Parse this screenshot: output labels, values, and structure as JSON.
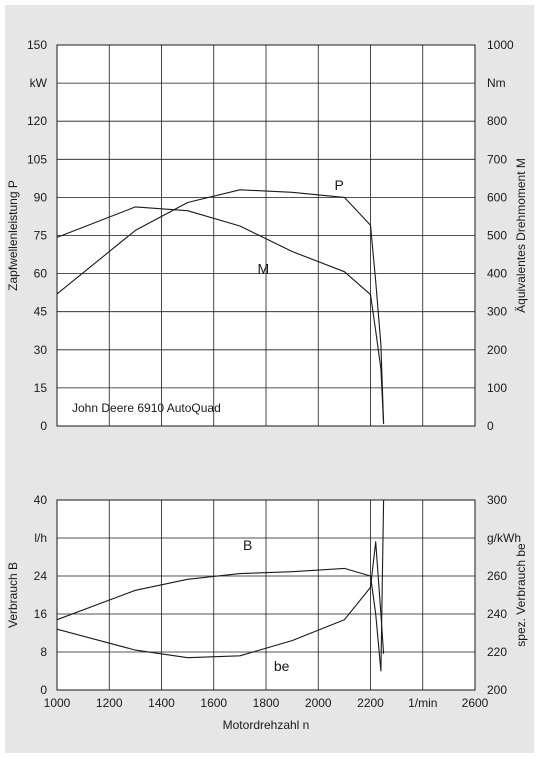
{
  "chart_data": [
    {
      "type": "line",
      "annotation": "John Deere 6910 AutoQuad",
      "xlim": [
        1000,
        2600
      ],
      "grid": true,
      "y_left": {
        "label": "Zapfwellenleistung P",
        "unit": "kW",
        "ylim": [
          0,
          150
        ],
        "ticks": [
          "0",
          "15",
          "30",
          "45",
          "60",
          "75",
          "90",
          "105",
          "120",
          "150"
        ]
      },
      "y_right": {
        "label": "Äquivalentes Drehmoment M",
        "unit": "Nm",
        "ylim": [
          0,
          1000
        ],
        "ticks": [
          "0",
          "100",
          "200",
          "300",
          "400",
          "500",
          "600",
          "700",
          "800",
          "1000"
        ]
      },
      "series": [
        {
          "name": "P",
          "axis": "left",
          "color": "#1a1a1a",
          "x": [
            1000,
            1300,
            1500,
            1700,
            1900,
            2100,
            2200,
            2220,
            2240,
            2250
          ],
          "y": [
            52,
            77,
            88,
            93,
            92,
            90,
            79,
            57,
            32,
            1
          ]
        },
        {
          "name": "M",
          "axis": "right",
          "color": "#1a1a1a",
          "x": [
            1000,
            1300,
            1500,
            1700,
            1900,
            2100,
            2200,
            2220,
            2240,
            2250
          ],
          "y": [
            495,
            575,
            565,
            525,
            458,
            405,
            345,
            250,
            150,
            5
          ]
        }
      ]
    },
    {
      "type": "line",
      "xlim": [
        1000,
        2600
      ],
      "grid": true,
      "x_axis": {
        "label": "Motordrehzahl n",
        "ticks": [
          "1000",
          "1200",
          "1400",
          "1600",
          "1800",
          "2000",
          "2200",
          "1/min",
          "2600"
        ]
      },
      "y_left": {
        "label": "Verbrauch B",
        "unit": "l/h",
        "ylim": [
          0,
          40
        ],
        "ticks": [
          "0",
          "8",
          "16",
          "24",
          "40"
        ]
      },
      "y_right": {
        "label": "spez. Verbrauch be",
        "unit": "g/kWh",
        "ylim": [
          200,
          300
        ],
        "ticks": [
          "200",
          "220",
          "240",
          "260",
          "300"
        ]
      },
      "series": [
        {
          "name": "B",
          "axis": "left",
          "color": "#1a1a1a",
          "x": [
            1000,
            1300,
            1500,
            1700,
            1900,
            2100,
            2200,
            2220,
            2240,
            2250
          ],
          "y": [
            14.8,
            21,
            23.3,
            24.5,
            24.9,
            25.6,
            24,
            16,
            4,
            40
          ]
        },
        {
          "name": "be",
          "axis": "right",
          "color": "#1a1a1a",
          "x": [
            1000,
            1300,
            1500,
            1700,
            1900,
            2100,
            2200,
            2220,
            2240,
            2250
          ],
          "y": [
            232,
            221,
            217,
            218,
            226,
            237,
            254,
            278,
            240,
            219
          ]
        }
      ]
    }
  ]
}
